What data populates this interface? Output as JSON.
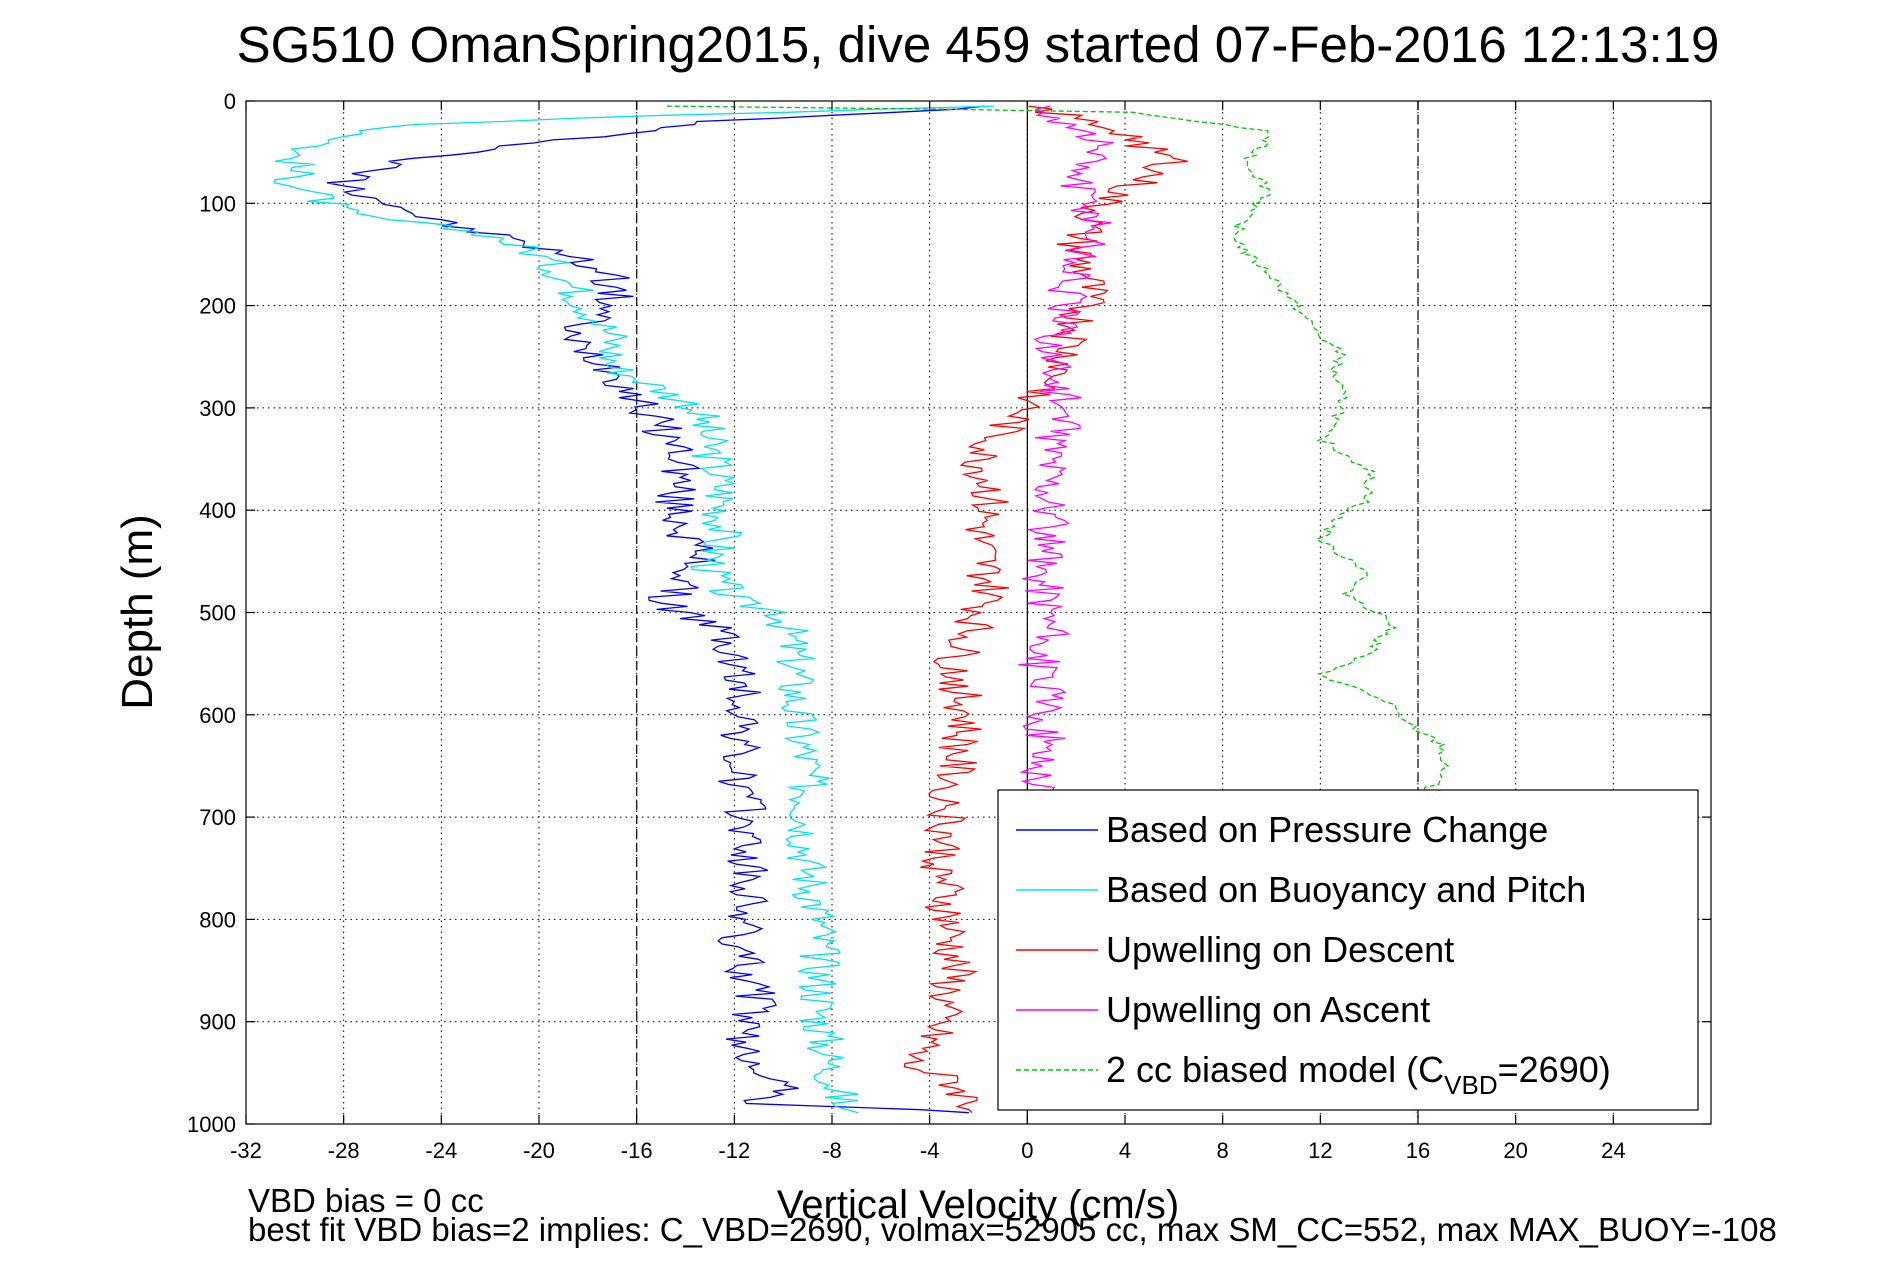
{
  "chart_data": {
    "type": "line",
    "title": "SG510 OmanSpring2015, dive 459 started 07-Feb-2016 12:13:19",
    "xlabel": "Vertical Velocity (cm/s)",
    "ylabel": "Depth (m)",
    "xlim": [
      -32,
      28
    ],
    "ylim": [
      0,
      1000
    ],
    "y_reversed": true,
    "grid": true,
    "x_ticks": [
      "-32",
      "-28",
      "-24",
      "-20",
      "-16",
      "-12",
      "-8",
      "-4",
      "0",
      "4",
      "8",
      "12",
      "16",
      "20",
      "24"
    ],
    "y_ticks": [
      "0",
      "100",
      "200",
      "300",
      "400",
      "500",
      "600",
      "700",
      "800",
      "900",
      "1000"
    ],
    "reference_lines": {
      "vertical_dashed_x": [
        -16,
        16
      ],
      "vertical_solid_x": [
        0
      ]
    },
    "legend_position": "lower-right",
    "series": [
      {
        "name": "Based on Pressure Change",
        "color": "#0000ff",
        "x": [
          -1,
          -13,
          -26,
          -28,
          -27,
          -25,
          -24,
          -22,
          -19,
          -17,
          -17,
          -19,
          -17,
          -16,
          -15,
          -14,
          -14.5,
          -14,
          -13.5,
          -14.5,
          -15,
          -14,
          -12.5,
          -12,
          -11.5,
          -12,
          -11.5,
          -11.5,
          -11.5,
          -12,
          -11.5,
          -11,
          -12,
          -11,
          -10,
          -11,
          -1
        ],
        "y": [
          5,
          20,
          60,
          80,
          90,
          110,
          120,
          130,
          150,
          170,
          200,
          230,
          260,
          290,
          320,
          350,
          390,
          420,
          450,
          480,
          490,
          500,
          520,
          550,
          600,
          650,
          700,
          750,
          800,
          820,
          850,
          880,
          920,
          940,
          960,
          980,
          990
        ]
      },
      {
        "name": "Based on Buoyancy and Pitch",
        "color": "#00e5e5",
        "x": [
          -1,
          -17,
          -26,
          -30,
          -30,
          -28,
          -22,
          -20,
          -19,
          -18,
          -17,
          -17,
          -16,
          -13.5,
          -13,
          -12.5,
          -12.5,
          -13,
          -12,
          -10,
          -9.5,
          -9.5,
          -9,
          -9,
          -9,
          -8.5,
          -8.5,
          -8,
          -7.5
        ],
        "y": [
          5,
          15,
          25,
          50,
          80,
          110,
          130,
          150,
          170,
          200,
          230,
          260,
          270,
          300,
          340,
          380,
          420,
          460,
          490,
          500,
          550,
          600,
          650,
          700,
          750,
          800,
          900,
          950,
          990
        ]
      },
      {
        "name": "Upwelling on Descent",
        "color": "#ff0000",
        "x": [
          0,
          4,
          6,
          3,
          2,
          2.5,
          2,
          1.5,
          0.5,
          -1,
          -2,
          -1.5,
          -2,
          -1.5,
          -3,
          -2.5,
          -3,
          -3.5,
          -3,
          -4,
          -5,
          -3,
          -2
        ],
        "y": [
          5,
          30,
          60,
          100,
          140,
          180,
          220,
          260,
          290,
          320,
          350,
          380,
          430,
          480,
          550,
          600,
          650,
          750,
          850,
          920,
          940,
          960,
          990
        ]
      },
      {
        "name": "Upwelling on Ascent",
        "color": "#ff00ff",
        "x": [
          0.5,
          3,
          2,
          3,
          2,
          1.5,
          1,
          1.5,
          1,
          1,
          0.5,
          1,
          0.5,
          0.8,
          0.5,
          0.6,
          0.5,
          0.3
        ],
        "y": [
          5,
          40,
          80,
          120,
          160,
          200,
          250,
          300,
          350,
          400,
          450,
          500,
          550,
          600,
          650,
          680,
          800,
          960
        ]
      },
      {
        "name": "2 cc biased model (C_VBD=2690)",
        "label_parts": [
          "2 cc biased model (C",
          "VBD",
          "=2690)"
        ],
        "color": "#00c800",
        "dashed": true,
        "x": [
          -15,
          4,
          10,
          9,
          10,
          9,
          8.5,
          9,
          10,
          11,
          12,
          13,
          12.5,
          13,
          12,
          14,
          14,
          13,
          12,
          14,
          13,
          15,
          14,
          12,
          15,
          15,
          17,
          17,
          16,
          15,
          16
        ],
        "y": [
          5,
          10,
          30,
          60,
          90,
          110,
          130,
          150,
          170,
          200,
          230,
          250,
          260,
          300,
          330,
          360,
          390,
          400,
          430,
          460,
          480,
          510,
          540,
          560,
          590,
          600,
          630,
          660,
          680,
          960,
          990
        ]
      }
    ],
    "footnote_lines": [
      "VBD bias = 0 cc",
      "best fit VBD bias=2 implies: C_VBD=2690, volmax=52905 cc, max SM_CC=552, max MAX_BUOY=-108"
    ]
  }
}
